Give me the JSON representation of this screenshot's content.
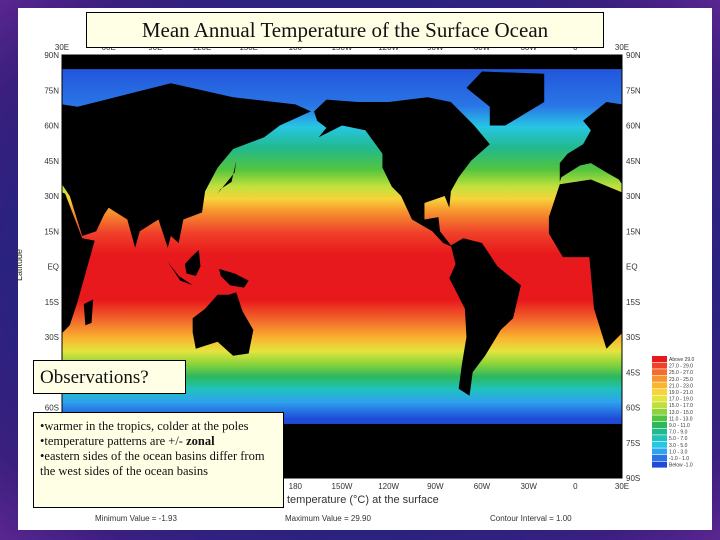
{
  "title": "Mean Annual Temperature of the Surface Ocean",
  "map": {
    "y_axis_label": "Latitude",
    "longitudes": [
      "30E",
      "60E",
      "90E",
      "120E",
      "150E",
      "180",
      "150W",
      "120W",
      "90W",
      "60W",
      "30W",
      "0",
      "30E"
    ],
    "latitudes": [
      "90N",
      "75N",
      "60N",
      "45N",
      "30N",
      "15N",
      "EQ",
      "15S",
      "30S",
      "45S",
      "60S",
      "75S",
      "90S"
    ],
    "caption": "temperature (°C) at the surface",
    "stats": [
      "Minimum Value = -1.93",
      "Maximum Value = 29.90",
      "Contour Interval = 1.00"
    ],
    "legend": [
      {
        "label": "Above 29.0",
        "color": "#e8191c"
      },
      {
        "label": "27.0 - 29.0",
        "color": "#f0412a"
      },
      {
        "label": "25.0 - 27.0",
        "color": "#f36d2c"
      },
      {
        "label": "23.0 - 25.0",
        "color": "#f7942f"
      },
      {
        "label": "21.0 - 23.0",
        "color": "#f9b52f"
      },
      {
        "label": "19.0 - 21.0",
        "color": "#f7d43a"
      },
      {
        "label": "17.0 - 19.0",
        "color": "#e4e43e"
      },
      {
        "label": "15.0 - 17.0",
        "color": "#bfe03c"
      },
      {
        "label": "13.0 - 15.0",
        "color": "#8cd43b"
      },
      {
        "label": "11.0 - 13.0",
        "color": "#52c43f"
      },
      {
        "label": "9.0 - 11.0",
        "color": "#2db85c"
      },
      {
        "label": "7.0 - 9.0",
        "color": "#22b98d"
      },
      {
        "label": "5.0 - 7.0",
        "color": "#1fc2bd"
      },
      {
        "label": "3.0 - 5.0",
        "color": "#27c6e4"
      },
      {
        "label": "1.0 - 3.0",
        "color": "#2ea3ee"
      },
      {
        "label": "-1.0 - 1.0",
        "color": "#2a75e6"
      },
      {
        "label": "Below -1.0",
        "color": "#1f4bd8"
      }
    ]
  },
  "observations": {
    "heading": "Observations?",
    "bullets": [
      {
        "text": "warmer in the tropics, colder at the poles"
      },
      {
        "text": "temperature patterns are +/- ",
        "emphasis": "zonal"
      },
      {
        "text": "eastern sides of the ocean basins differ from the west sides of the ocean basins"
      }
    ]
  }
}
